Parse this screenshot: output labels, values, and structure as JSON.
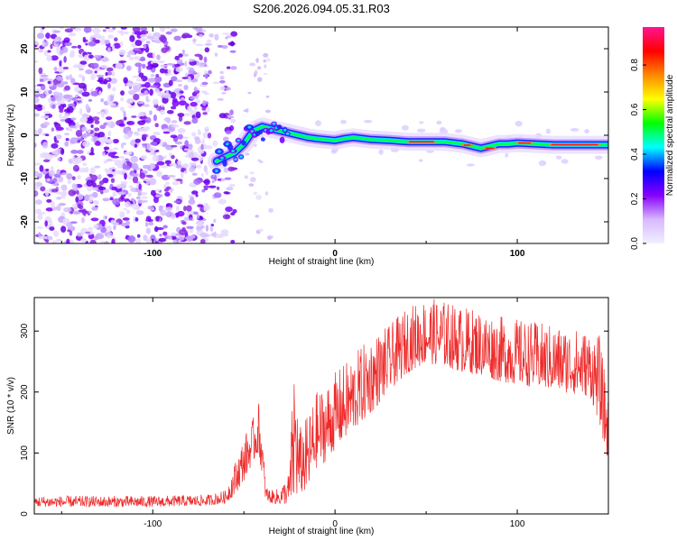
{
  "title": "S206.2026.094.05.31.R03",
  "chart_data": [
    {
      "type": "heatmap",
      "name": "spectrogram",
      "xlabel": "Height of straight line (km)",
      "ylabel": "Frequency (Hz)",
      "xlim": [
        -165,
        150
      ],
      "ylim": [
        -25,
        25
      ],
      "xticks": [
        -100,
        0,
        100
      ],
      "yticks": [
        -20,
        -10,
        0,
        10,
        20
      ],
      "colorbar": {
        "label": "Normalized spectral amplitude",
        "range": [
          0,
          0.97
        ],
        "ticks": [
          0.0,
          0.2,
          0.4,
          0.6,
          0.8
        ],
        "colors": [
          "#f0f0ff",
          "#d8b8ff",
          "#8800ff",
          "#0000ff",
          "#00ffff",
          "#00ff00",
          "#ffff00",
          "#ff8800",
          "#ff0000",
          "#ff1493"
        ]
      },
      "noise_region_x": [
        -165,
        -65
      ],
      "signal_track": {
        "x": [
          -65,
          -55,
          -50,
          -45,
          -40,
          -35,
          -30,
          -25,
          -20,
          -15,
          -10,
          -5,
          0,
          5,
          10,
          20,
          30,
          40,
          50,
          60,
          70,
          75,
          80,
          85,
          90,
          95,
          100,
          110,
          120,
          130,
          140,
          150
        ],
        "freq": [
          -6,
          -4,
          -2,
          1,
          2,
          1.5,
          1,
          0.5,
          0,
          -0.5,
          -0.8,
          -1,
          -1.2,
          -0.8,
          -0.5,
          -1,
          -1.2,
          -1.5,
          -1.5,
          -1.5,
          -2,
          -2.5,
          -3,
          -2.5,
          -2,
          -2,
          -1.8,
          -2,
          -2.2,
          -2.2,
          -2.2,
          -2.2
        ]
      }
    },
    {
      "type": "line",
      "name": "snr",
      "xlabel": "Height of straight line (km)",
      "ylabel": "SNR (10 * v/v)",
      "xlim": [
        -165,
        150
      ],
      "ylim": [
        0,
        355
      ],
      "xticks": [
        -100,
        0,
        100
      ],
      "yticks": [
        0,
        100,
        200,
        300
      ],
      "color": "#ee2a2a",
      "envelope": {
        "x": [
          -165,
          -100,
          -70,
          -60,
          -55,
          -50,
          -45,
          -42,
          -40,
          -38,
          -35,
          -30,
          -25,
          -22,
          -20,
          -15,
          -10,
          -5,
          0,
          10,
          20,
          30,
          40,
          50,
          60,
          70,
          80,
          90,
          100,
          110,
          120,
          130,
          140,
          145,
          150
        ],
        "mean": [
          18,
          18,
          20,
          25,
          50,
          80,
          110,
          130,
          90,
          30,
          25,
          25,
          35,
          110,
          70,
          80,
          120,
          130,
          150,
          180,
          210,
          240,
          270,
          285,
          280,
          270,
          265,
          255,
          250,
          245,
          240,
          235,
          230,
          200,
          120
        ],
        "amp": [
          10,
          10,
          10,
          12,
          30,
          40,
          40,
          50,
          40,
          15,
          12,
          15,
          30,
          150,
          60,
          70,
          70,
          70,
          70,
          70,
          70,
          60,
          60,
          60,
          60,
          60,
          60,
          60,
          60,
          60,
          60,
          60,
          60,
          80,
          60
        ]
      }
    }
  ]
}
